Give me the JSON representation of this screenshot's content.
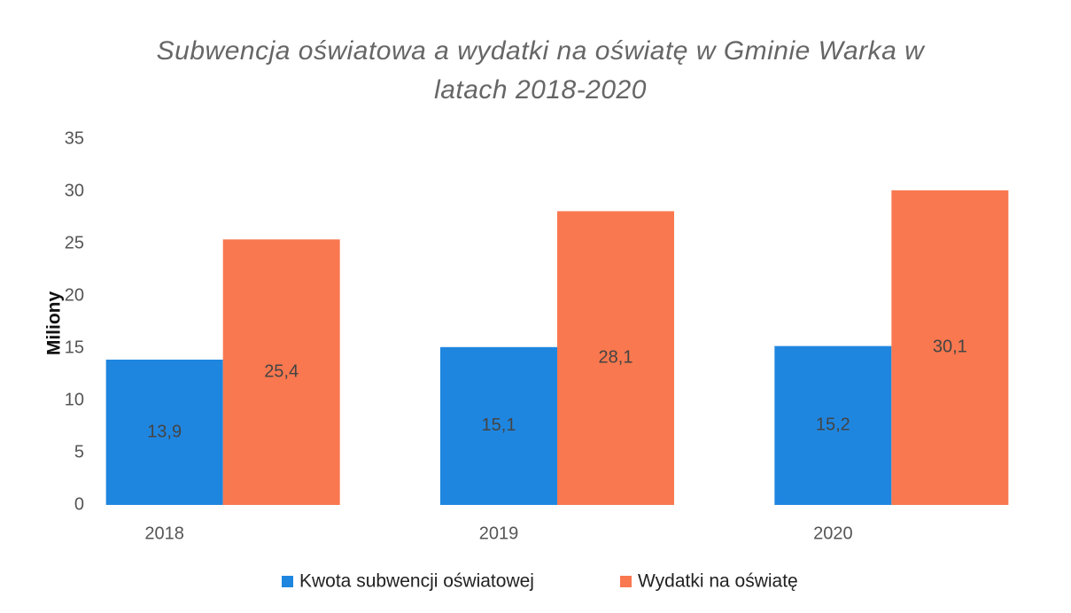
{
  "chart_data": {
    "type": "bar",
    "title": "Subwencja oświatowa a wydatki na oświatę w Gminie Warka w latach 2018-2020",
    "y_label": "Miliony",
    "categories": [
      "2018",
      "2019",
      "2020"
    ],
    "series": [
      {
        "name": "Kwota subwencji oświatowej",
        "color": "#1f86e0",
        "values": [
          13.9,
          15.1,
          15.2
        ],
        "value_labels": [
          "13,9",
          "15,1",
          "15,2"
        ]
      },
      {
        "name": "Wydatki na oświatę",
        "color": "#f9784f",
        "values": [
          25.4,
          28.1,
          30.1
        ],
        "value_labels": [
          "25,4",
          "28,1",
          "30,1"
        ]
      }
    ],
    "ylim": [
      0,
      35
    ],
    "yticks": [
      0,
      5,
      10,
      15,
      20,
      25,
      30,
      35
    ],
    "grid": false,
    "legend": "bottom"
  }
}
